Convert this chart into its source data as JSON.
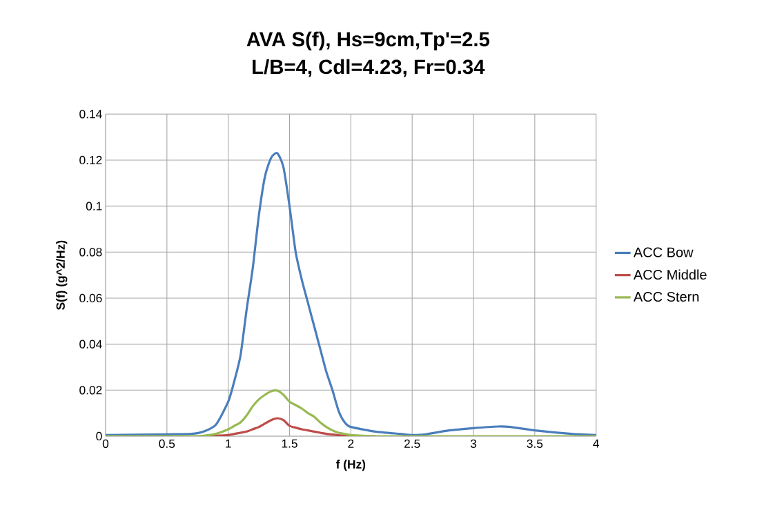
{
  "chart_data": {
    "type": "line",
    "title": "AVA S(f), Hs=9cm,Tp'=2.5",
    "subtitle": "L/B=4, Cdl=4.23, Fr=0.34",
    "xlabel": "f (Hz)",
    "ylabel": "S(f) (g^2/Hz)",
    "xlim": [
      0,
      4
    ],
    "ylim": [
      0,
      0.14
    ],
    "xticks": [
      0,
      0.5,
      1,
      1.5,
      2,
      2.5,
      3,
      3.5,
      4
    ],
    "yticks": [
      0,
      0.02,
      0.04,
      0.06,
      0.08,
      0.1,
      0.12,
      0.14
    ],
    "grid": true,
    "legend": "right",
    "marker": "none",
    "line_style": "solid",
    "x": [
      0,
      0.5,
      0.7,
      0.8,
      0.9,
      1.0,
      1.05,
      1.1,
      1.15,
      1.2,
      1.25,
      1.3,
      1.35,
      1.4,
      1.45,
      1.5,
      1.55,
      1.6,
      1.65,
      1.7,
      1.75,
      1.8,
      1.85,
      1.9,
      1.95,
      2.0,
      2.2,
      2.4,
      2.5,
      2.6,
      2.8,
      3.0,
      3.2,
      3.3,
      3.5,
      3.8,
      4.0
    ],
    "series": [
      {
        "name": "ACC Bow",
        "color": "#4a7ebb",
        "values": [
          0.0005,
          0.0008,
          0.001,
          0.002,
          0.005,
          0.015,
          0.024,
          0.035,
          0.055,
          0.073,
          0.096,
          0.113,
          0.121,
          0.123,
          0.117,
          0.1,
          0.08,
          0.068,
          0.058,
          0.048,
          0.038,
          0.028,
          0.02,
          0.011,
          0.006,
          0.004,
          0.002,
          0.001,
          0.0005,
          0.0007,
          0.0025,
          0.0035,
          0.0042,
          0.004,
          0.0025,
          0.001,
          0.0005
        ]
      },
      {
        "name": "ACC Middle",
        "color": "#be4b48",
        "values": [
          null,
          null,
          null,
          0,
          0.0002,
          0.0005,
          0.001,
          0.0015,
          0.002,
          0.003,
          0.004,
          0.0055,
          0.007,
          0.0078,
          0.007,
          0.0045,
          0.0037,
          0.003,
          0.0025,
          0.002,
          0.0015,
          0.001,
          0.0007,
          0.0004,
          0.0002,
          0,
          0,
          null,
          null,
          null,
          null,
          null,
          null,
          null,
          null,
          null,
          null
        ]
      },
      {
        "name": "ACC Stern",
        "color": "#98b954",
        "values": [
          0,
          0,
          0,
          0.0002,
          0.001,
          0.003,
          0.0045,
          0.006,
          0.009,
          0.013,
          0.016,
          0.018,
          0.0195,
          0.0198,
          0.018,
          0.015,
          0.0135,
          0.012,
          0.01,
          0.0085,
          0.006,
          0.004,
          0.0025,
          0.0015,
          0.001,
          0.0005,
          0,
          0,
          0,
          0,
          0,
          0,
          0,
          0,
          0,
          0,
          0
        ]
      }
    ]
  }
}
